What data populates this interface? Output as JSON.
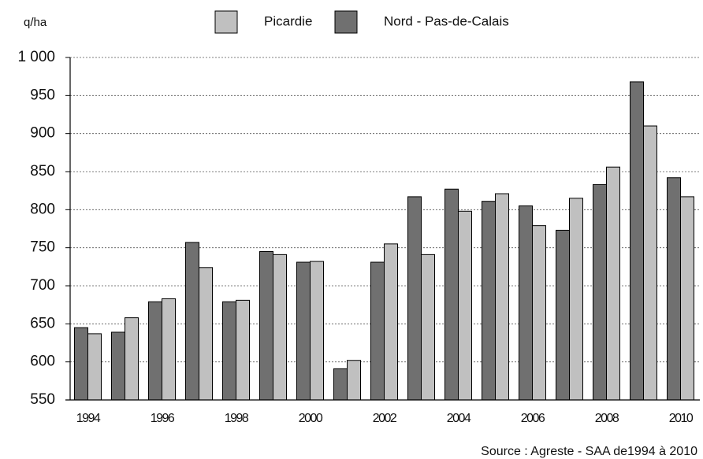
{
  "chart_data": {
    "type": "bar",
    "y_label": "q/ha",
    "source": "Source : Agreste - SAA de1994 à 2010",
    "categories": [
      "1994",
      null,
      "1996",
      null,
      "1998",
      null,
      "2000",
      null,
      "2002",
      null,
      "2004",
      null,
      "2006",
      null,
      "2008",
      null,
      "2010"
    ],
    "series": [
      {
        "name": "Picardie",
        "color": "#c0c0c0",
        "values": [
          637,
          658,
          683,
          724,
          681,
          741,
          732,
          602,
          755,
          741,
          798,
          821,
          779,
          815,
          856,
          910,
          817
        ]
      },
      {
        "name": "Nord - Pas-de-Calais",
        "color": "#707070",
        "values": [
          645,
          639,
          679,
          757,
          679,
          745,
          731,
          591,
          731,
          817,
          827,
          811,
          805,
          773,
          833,
          968,
          842
        ]
      }
    ],
    "ylim": [
      550,
      1000
    ],
    "yticks": [
      550,
      600,
      650,
      700,
      750,
      800,
      850,
      900,
      950,
      {
        "value": 1000,
        "label": "1 000"
      }
    ],
    "grid": true
  }
}
